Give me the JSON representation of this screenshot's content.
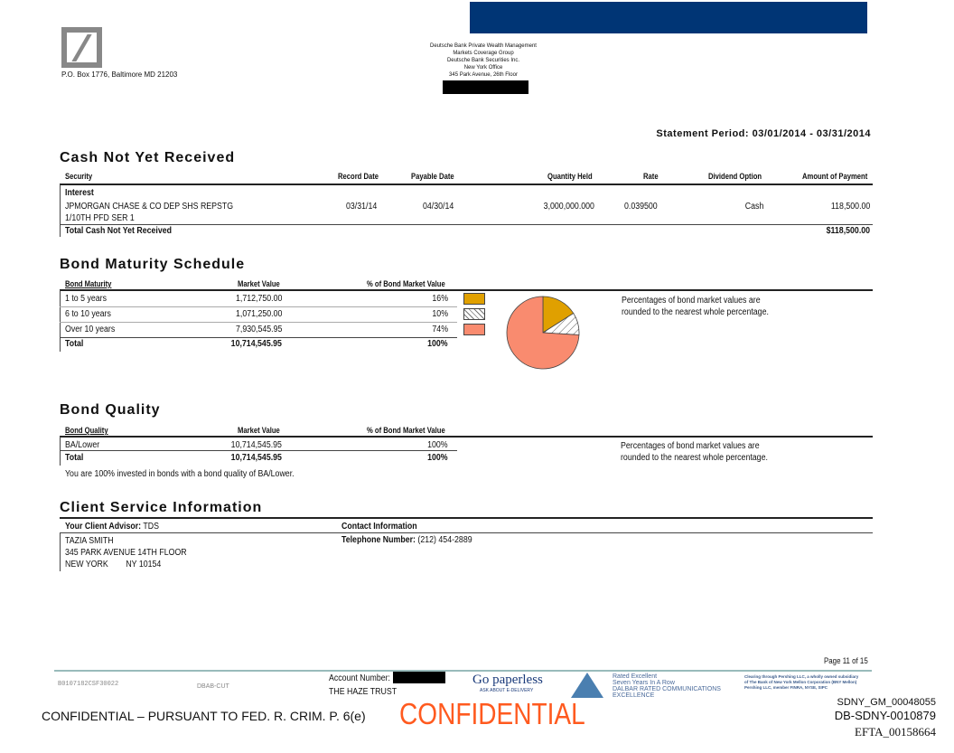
{
  "header": {
    "address": "P.O. Box 1776, Baltimore MD 21203",
    "office": [
      "Deutsche Bank Private Wealth Management",
      "Markets Coverage Group",
      "Deutsche Bank Securities Inc.",
      "New York Office",
      "345 Park Avenue, 26th Floor"
    ],
    "statement_period": "Statement Period: 03/01/2014 - 03/31/2014"
  },
  "cash": {
    "title": "Cash Not Yet Received",
    "columns": [
      "Security",
      "Record Date",
      "Payable Date",
      "Quantity Held",
      "Rate",
      "Dividend Option",
      "Amount of Payment"
    ],
    "group": "Interest",
    "row": {
      "security1": "JPMORGAN CHASE & CO DEP SHS REPSTG",
      "security2": "1/10TH PFD SER 1",
      "record": "03/31/14",
      "payable": "04/30/14",
      "qty": "3,000,000.000",
      "rate": "0.039500",
      "option": "Cash",
      "amount": "118,500.00"
    },
    "total_label": "Total Cash Not Yet Received",
    "total": "$118,500.00"
  },
  "maturity": {
    "title": "Bond Maturity Schedule",
    "columns": [
      "Bond Maturity",
      "Market Value",
      "% of Bond Market Value"
    ],
    "rows": [
      {
        "label": "1 to 5 years",
        "value": "1,712,750.00",
        "pct": "16%",
        "color": "#E0A000"
      },
      {
        "label": "6 to 10 years",
        "value": "1,071,250.00",
        "pct": "10%",
        "color": "hatched"
      },
      {
        "label": "Over 10 years",
        "value": "7,930,545.95",
        "pct": "74%",
        "color": "#F98B6F"
      }
    ],
    "total_label": "Total",
    "total_value": "10,714,545.95",
    "total_pct": "100%",
    "note": [
      "Percentages of bond market values are",
      "rounded to the nearest whole percentage."
    ]
  },
  "quality": {
    "title": "Bond Quality",
    "columns": [
      "Bond Quality",
      "Market Value",
      "% of Bond Market Value"
    ],
    "rows": [
      {
        "label": "BA/Lower",
        "value": "10,714,545.95",
        "pct": "100%"
      }
    ],
    "total_label": "Total",
    "total_value": "10,714,545.95",
    "total_pct": "100%",
    "statement": "You are 100% invested in bonds with a bond quality of BA/Lower.",
    "note": [
      "Percentages of bond market values are",
      "rounded to the nearest whole percentage."
    ]
  },
  "client": {
    "title": "Client Service Information",
    "advisor_label": "Your Client Advisor:",
    "advisor_code": "TDS",
    "contact_label": "Contact Information",
    "lines": [
      "TAZIA SMITH",
      "345 PARK AVENUE 14TH FLOOR",
      "NEW YORK        NY 10154"
    ],
    "phone_label": "Telephone Number:",
    "phone": "(212) 454-2889"
  },
  "footer": {
    "page": "Page 11 of 15",
    "code": "B0107182CSF30022",
    "dbab": "DBAB-CUT",
    "account_label": "Account Number:",
    "trust": "THE HAZE TRUST",
    "go": "Go paperless",
    "go_sub": "ASK ABOUT E-DELIVERY",
    "dalbar": [
      "Rated Excellent",
      "Seven Years In A Row",
      "DALBAR RATED COMMUNICATIONS",
      "EXCELLENCE"
    ],
    "pershing": [
      "Clearing through Pershing LLC, a wholly owned subsidiary",
      "of The Bank of New York Mellon Corporation (BNY Mellon)",
      "Pershing LLC, member FINRA, NYSE, SIPC"
    ],
    "confidential": "CONFIDENTIAL",
    "conf_line": "CONFIDENTIAL – PURSUANT TO FED. R. CRIM. P. 6(e)",
    "ids": [
      "SDNY_GM_00048055",
      "DB-SDNY-0010879",
      "EFTA_00158664"
    ]
  }
}
